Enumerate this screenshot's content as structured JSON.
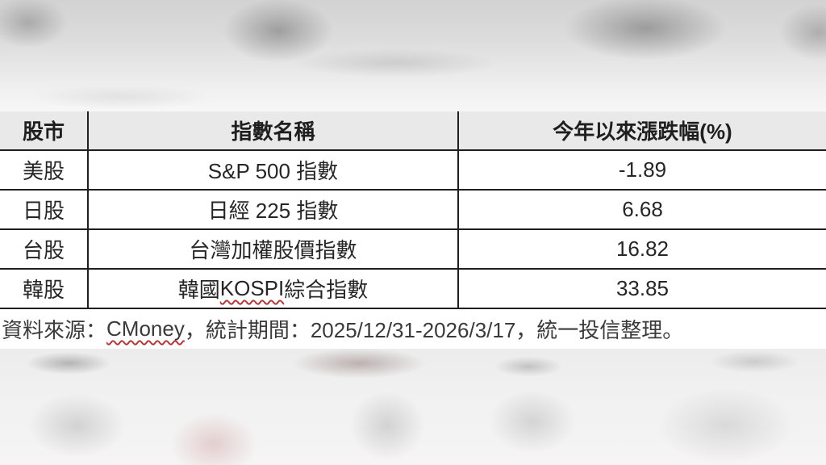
{
  "table": {
    "columns": [
      "股市",
      "指數名稱",
      "今年以來漲跌幅(%)"
    ],
    "rows": [
      {
        "market": "美股",
        "name_prefix": "S&P 500 指數",
        "name_flagged": "",
        "name_suffix": "",
        "value": "-1.89"
      },
      {
        "market": "日股",
        "name_prefix": "日經 225 指數",
        "name_flagged": "",
        "name_suffix": "",
        "value": "6.68"
      },
      {
        "market": "台股",
        "name_prefix": "台灣加權股價指數",
        "name_flagged": "",
        "name_suffix": "",
        "value": "16.82"
      },
      {
        "market": "韓股",
        "name_prefix": "韓國 ",
        "name_flagged": "KOSPI",
        "name_suffix": " 綜合指數",
        "value": "33.85"
      }
    ]
  },
  "footer": {
    "prefix": "資料來源：",
    "source_name": "CMoney",
    "suffix": "，統計期間：2025/12/31-2026/3/17，統一投信整理。"
  },
  "colors": {
    "header_bg": "#e9e9e9",
    "border_dark": "#1f1f1f",
    "spellcheck_red": "#b03a3a"
  },
  "chart_data": {
    "type": "table",
    "title": "",
    "columns": [
      "股市",
      "指數名稱",
      "今年以來漲跌幅(%)"
    ],
    "rows": [
      [
        "美股",
        "S&P 500 指數",
        -1.89
      ],
      [
        "日股",
        "日經 225 指數",
        6.68
      ],
      [
        "台股",
        "台灣加權股價指數",
        16.82
      ],
      [
        "韓股",
        "韓國 KOSPI 綜合指數",
        33.85
      ]
    ],
    "source_note": "資料來源：CMoney，統計期間：2025/12/31-2026/3/17，統一投信整理。",
    "layout": {
      "grid": "ruled table, dark 2px borders",
      "header_fill": "light gray",
      "value_alignment": "center"
    }
  }
}
